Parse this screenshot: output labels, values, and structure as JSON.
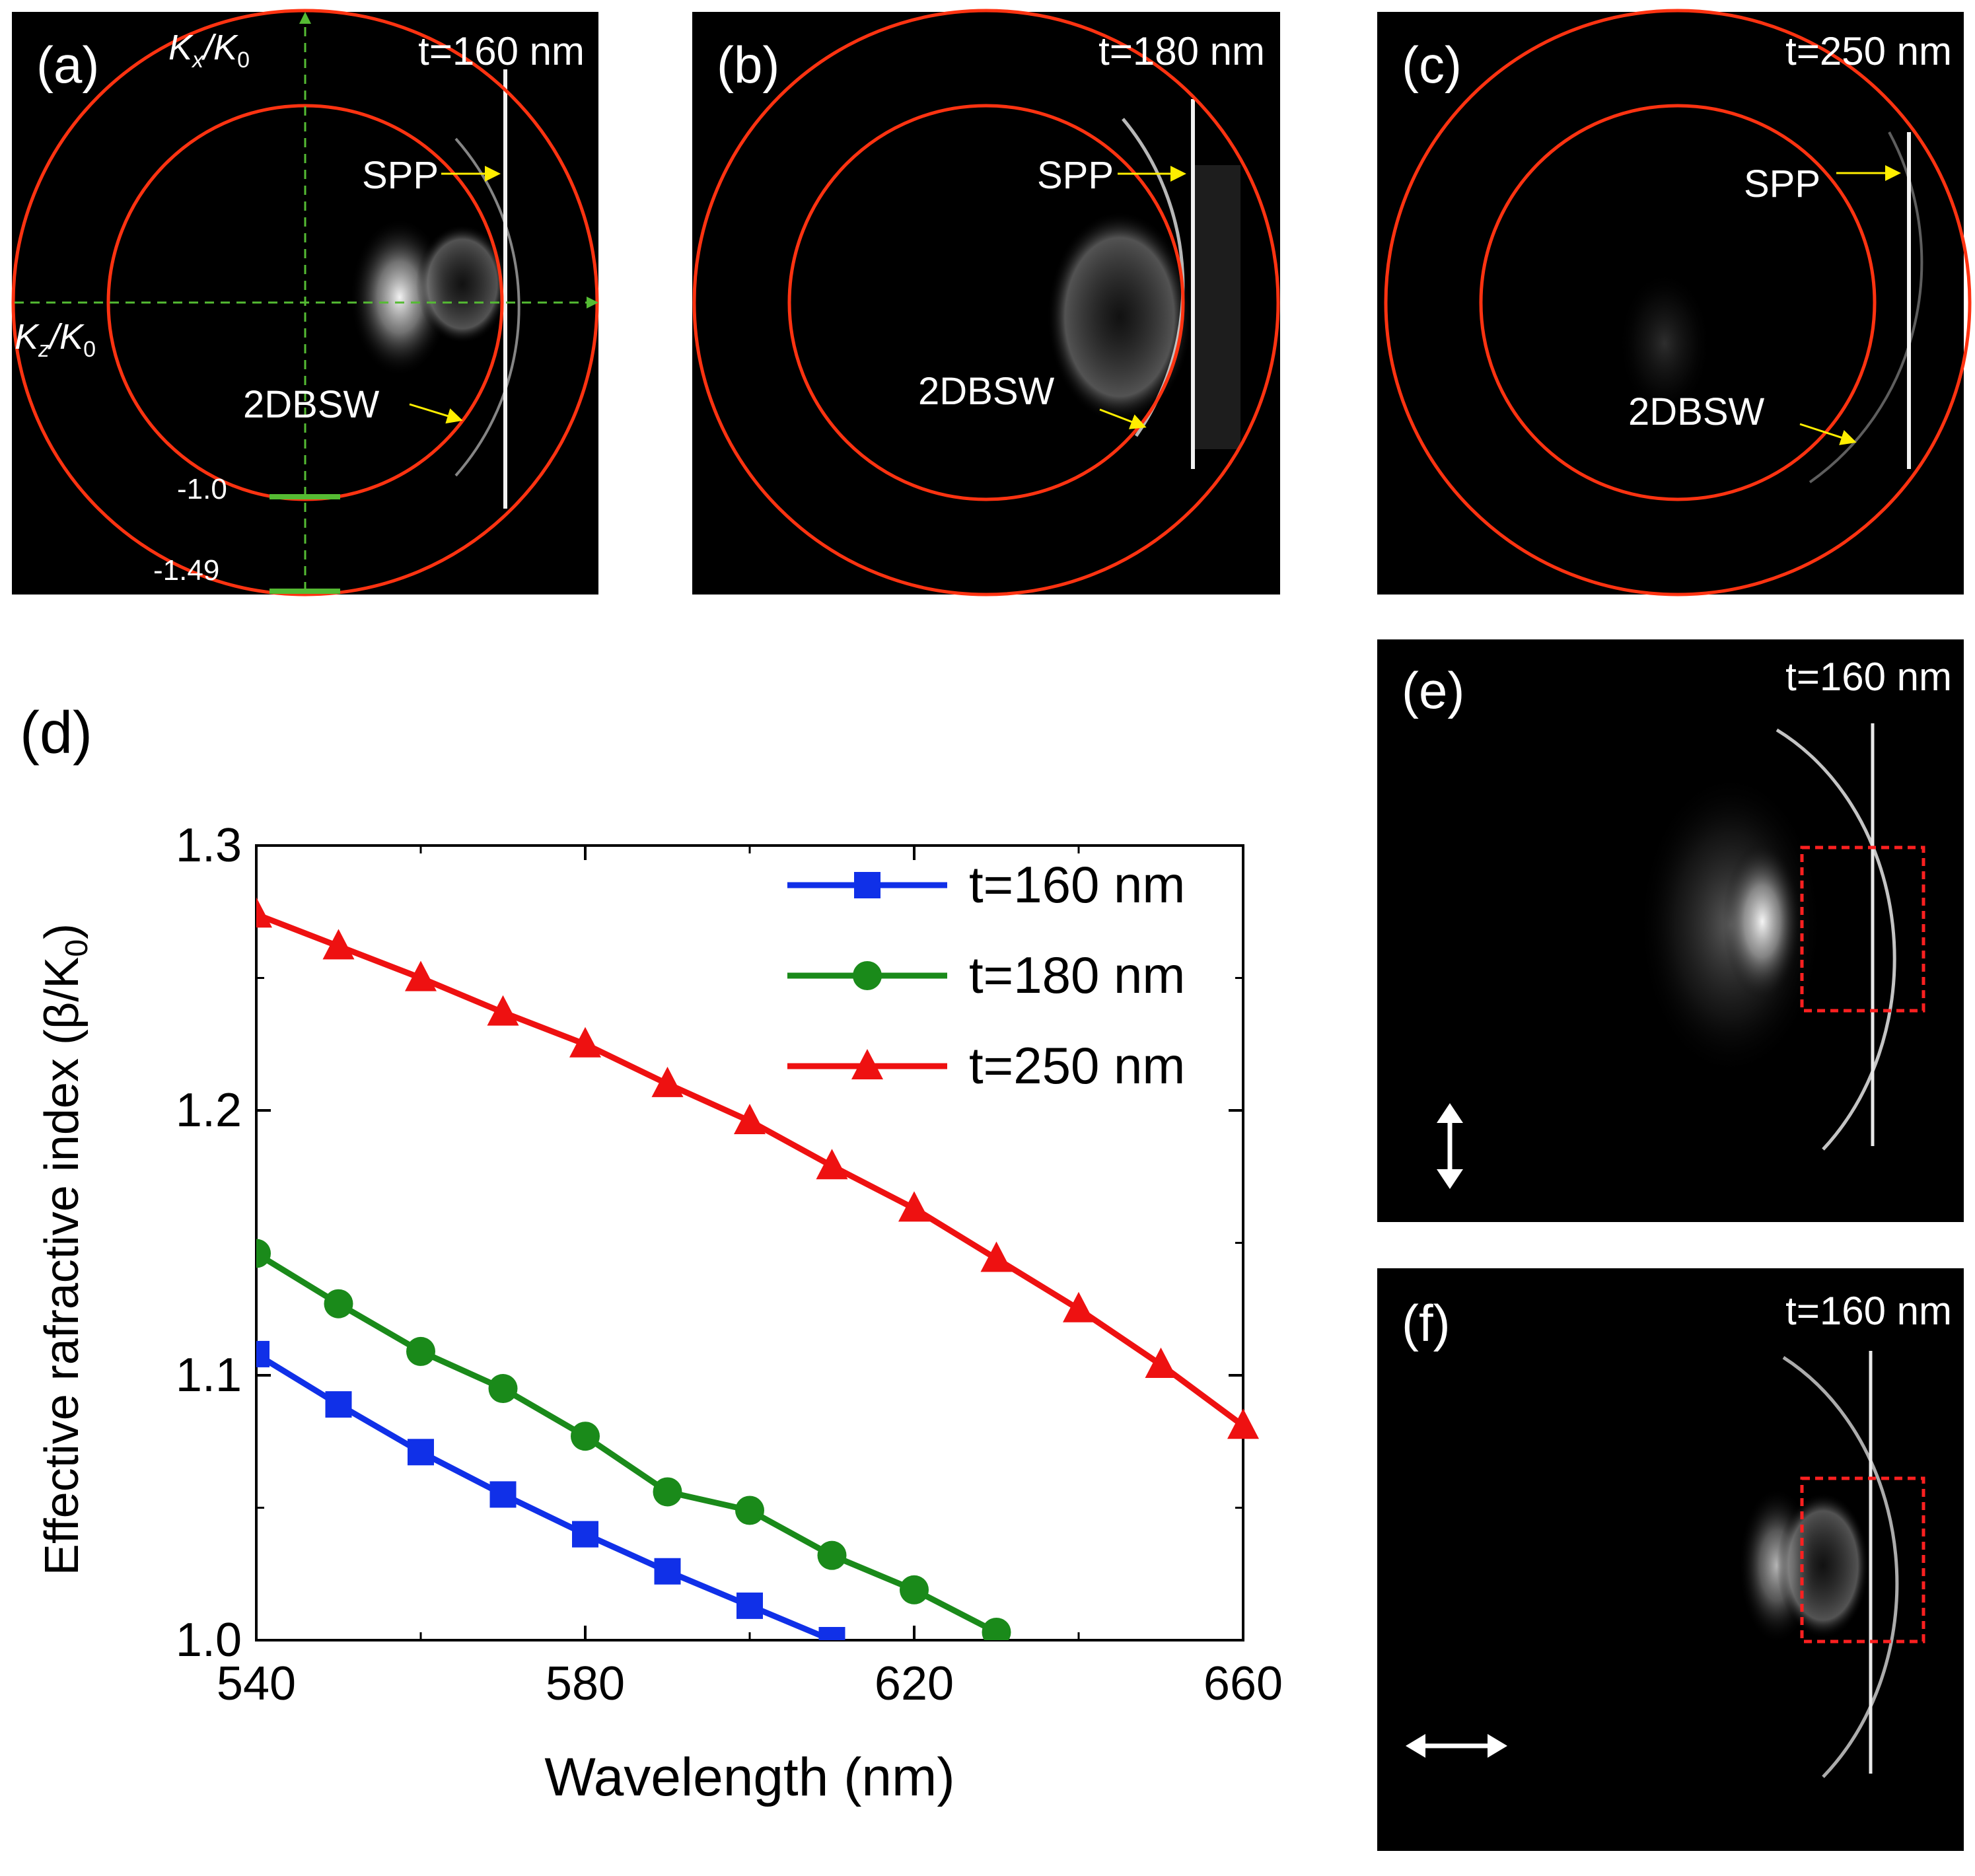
{
  "panels": {
    "a": {
      "label": "(a)",
      "thickness": "t=160 nm",
      "spp": "SPP",
      "bsw": "2DBSW",
      "axis_x_name": "K",
      "axis_x_sub": "x",
      "axis_x_den": "K",
      "axis_x_den_sub": "0",
      "axis_z_name": "K",
      "axis_z_sub": "z",
      "axis_z_den": "K",
      "axis_z_den_sub": "0",
      "inner_mark": "-1.0",
      "outer_mark": "-1.49"
    },
    "b": {
      "label": "(b)",
      "thickness": "t=180 nm",
      "spp": "SPP",
      "bsw": "2DBSW"
    },
    "c": {
      "label": "(c)",
      "thickness": "t=250 nm",
      "spp": "SPP",
      "bsw": "2DBSW"
    },
    "d": {
      "label": "(d)"
    },
    "e": {
      "label": "(e)",
      "thickness": "t=160 nm",
      "polarization": "vertical"
    },
    "f": {
      "label": "(f)",
      "thickness": "t=160 nm",
      "polarization": "horizontal"
    }
  },
  "colors": {
    "ring": "#ff3311",
    "axis": "#55bb33",
    "arrow": "#ffee00",
    "box": "#ff2020"
  },
  "chart_data": {
    "type": "line",
    "xlabel": "Wavelength (nm)",
    "ylabel": "Effective rafractive index (β/K",
    "ylabel_sub": "0",
    "ylabel_close": ")",
    "xlim": [
      540,
      660
    ],
    "ylim": [
      1.0,
      1.3
    ],
    "xticks": [
      540,
      580,
      620,
      660
    ],
    "xtick_labels": [
      "540",
      "580",
      "620",
      "660"
    ],
    "yticks": [
      1.0,
      1.1,
      1.2,
      1.3
    ],
    "ytick_labels": [
      "1.0",
      "1.1",
      "1.2",
      "1.3"
    ],
    "legend_position": "top-right",
    "series": [
      {
        "name": "t=160 nm",
        "color": "#1030e8",
        "marker": "square",
        "x": [
          540,
          550,
          560,
          570,
          580,
          590,
          600,
          610
        ],
        "y": [
          1.108,
          1.089,
          1.071,
          1.055,
          1.04,
          1.026,
          1.013,
          1.0
        ]
      },
      {
        "name": "t=180 nm",
        "color": "#1a8a1a",
        "marker": "circle",
        "x": [
          540,
          550,
          560,
          570,
          580,
          590,
          600,
          610,
          620,
          630
        ],
        "y": [
          1.146,
          1.127,
          1.109,
          1.095,
          1.077,
          1.056,
          1.049,
          1.032,
          1.019,
          1.003
        ]
      },
      {
        "name": "t=250 nm",
        "color": "#ee1111",
        "marker": "triangle",
        "x": [
          540,
          550,
          560,
          570,
          580,
          590,
          600,
          610,
          620,
          630,
          640,
          650,
          660
        ],
        "y": [
          1.274,
          1.262,
          1.25,
          1.237,
          1.225,
          1.21,
          1.196,
          1.179,
          1.163,
          1.144,
          1.125,
          1.104,
          1.081
        ]
      }
    ]
  }
}
